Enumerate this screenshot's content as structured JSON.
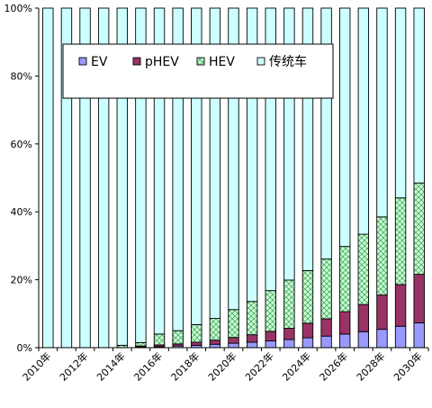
{
  "chart_data": {
    "type": "bar",
    "stacked": true,
    "categories": [
      "2010年",
      "2011年",
      "2012年",
      "2013年",
      "2014年",
      "2015年",
      "2016年",
      "2017年",
      "2018年",
      "2019年",
      "2020年",
      "2021年",
      "2022年",
      "2023年",
      "2024年",
      "2025年",
      "2026年",
      "2027年",
      "2028年",
      "2029年",
      "2030年"
    ],
    "x_tick_labels": [
      "2010年",
      "2012年",
      "2014年",
      "2016年",
      "2018年",
      "2020年",
      "2022年",
      "2024年",
      "2026年",
      "2028年",
      "2030年"
    ],
    "ylim": [
      0,
      100
    ],
    "y_ticks": [
      0,
      20,
      40,
      60,
      80,
      100
    ],
    "y_tick_labels": [
      "0%",
      "20%",
      "40%",
      "60%",
      "80%",
      "100%"
    ],
    "legend_position": "upper-left-inside",
    "series": [
      {
        "name": "EV",
        "color": "#9999ff",
        "pattern": "solid",
        "values": [
          0,
          0,
          0,
          0,
          0,
          0.2,
          0.3,
          0.5,
          0.7,
          1.0,
          1.3,
          1.6,
          2.0,
          2.4,
          2.9,
          3.4,
          4.0,
          4.7,
          5.4,
          6.3,
          7.3
        ]
      },
      {
        "name": "pHEV",
        "color": "#993366",
        "pattern": "solid",
        "values": [
          0,
          0,
          0,
          0,
          0,
          0.3,
          0.5,
          0.6,
          0.9,
          1.2,
          1.7,
          2.2,
          2.8,
          3.3,
          4.3,
          5.1,
          6.6,
          8.0,
          10.1,
          12.3,
          14.3
        ]
      },
      {
        "name": "HEV",
        "color": "#ccffcc",
        "pattern": "crosshatch",
        "values": [
          0,
          0,
          0,
          0,
          0.7,
          1.0,
          3.2,
          3.9,
          5.2,
          6.4,
          8.2,
          9.8,
          12.0,
          14.2,
          15.5,
          17.6,
          19.2,
          20.7,
          23.0,
          25.5,
          26.9
        ]
      },
      {
        "name": "传统车",
        "color": "#ccffff",
        "pattern": "solid",
        "values": [
          100,
          100,
          100,
          100,
          99.3,
          98.5,
          96.0,
          95.0,
          93.2,
          91.4,
          88.8,
          86.4,
          83.2,
          80.1,
          77.3,
          73.9,
          70.2,
          66.6,
          61.5,
          55.9,
          51.5
        ]
      }
    ]
  }
}
